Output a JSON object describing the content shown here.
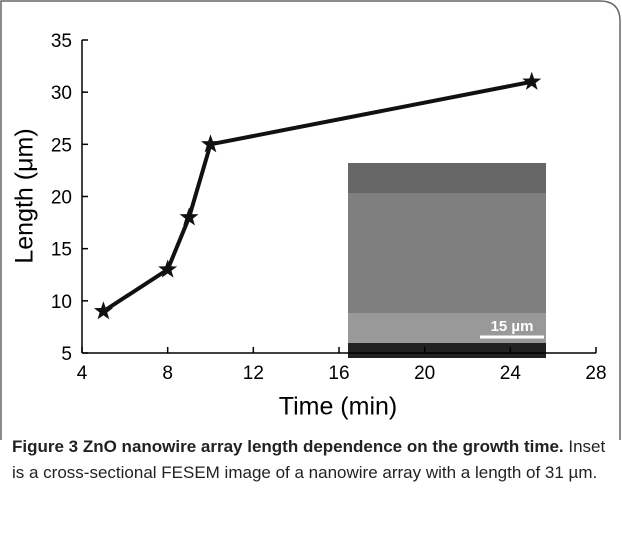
{
  "chart_data": {
    "type": "line",
    "x": [
      5,
      8,
      9,
      10,
      25
    ],
    "values": [
      9,
      13,
      18,
      25,
      31
    ],
    "color": "#111111",
    "xlabel": "Time (min)",
    "ylabel": "Length (μm)",
    "xlim": [
      4,
      28
    ],
    "xticks": [
      4,
      8,
      12,
      16,
      20,
      24,
      28
    ],
    "ylim": [
      5,
      35
    ],
    "yticks": [
      5,
      10,
      15,
      20,
      25,
      30,
      35
    ],
    "inset_label": "15 µm"
  },
  "caption": {
    "label": "Figure 3 ZnO nanowire array length dependence on the growth time.",
    "text": "Inset is a cross-sectional FESEM image of a nanowire array with a length of 31 µm."
  }
}
